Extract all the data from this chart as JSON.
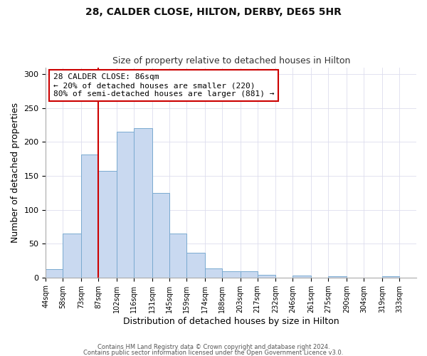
{
  "title": "28, CALDER CLOSE, HILTON, DERBY, DE65 5HR",
  "subtitle": "Size of property relative to detached houses in Hilton",
  "xlabel": "Distribution of detached houses by size in Hilton",
  "ylabel": "Number of detached properties",
  "footer_line1": "Contains HM Land Registry data © Crown copyright and database right 2024.",
  "footer_line2": "Contains public sector information licensed under the Open Government Licence v3.0.",
  "bin_labels": [
    "44sqm",
    "58sqm",
    "73sqm",
    "87sqm",
    "102sqm",
    "116sqm",
    "131sqm",
    "145sqm",
    "159sqm",
    "174sqm",
    "188sqm",
    "203sqm",
    "217sqm",
    "232sqm",
    "246sqm",
    "261sqm",
    "275sqm",
    "290sqm",
    "304sqm",
    "319sqm",
    "333sqm"
  ],
  "bar_values": [
    12,
    65,
    181,
    157,
    215,
    220,
    125,
    65,
    36,
    13,
    9,
    9,
    4,
    0,
    3,
    0,
    2,
    0,
    0,
    2
  ],
  "bar_color": "#c9d9f0",
  "bar_edge_color": "#7aaad0",
  "vline_x": 87,
  "vline_color": "#cc0000",
  "annotation_text": "28 CALDER CLOSE: 86sqm\n← 20% of detached houses are smaller (220)\n80% of semi-detached houses are larger (881) →",
  "annotation_box_color": "#ffffff",
  "annotation_box_edge": "#cc0000",
  "ylim": [
    0,
    310
  ],
  "xlim_min": 44,
  "xlim_max": 347,
  "plot_bg": "#ffffff",
  "fig_bg": "#ffffff",
  "bin_edges": [
    44,
    58,
    73,
    87,
    102,
    116,
    131,
    145,
    159,
    174,
    188,
    203,
    217,
    232,
    246,
    261,
    275,
    290,
    304,
    319,
    333
  ]
}
